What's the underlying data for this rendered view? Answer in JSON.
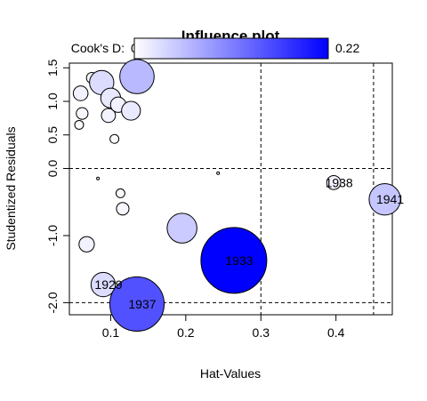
{
  "chart_data": {
    "type": "scatter",
    "title": "Influence plot",
    "xlabel": "Hat-Values",
    "ylabel": "Studentized Residuals",
    "xlim": [
      0.045,
      0.475
    ],
    "ylim": [
      -2.18,
      1.57
    ],
    "x_ticks": [
      {
        "value": 0.1,
        "label": "0.1"
      },
      {
        "value": 0.2,
        "label": "0.2"
      },
      {
        "value": 0.3,
        "label": "0.3"
      },
      {
        "value": 0.4,
        "label": "0.4"
      }
    ],
    "y_ticks": [
      {
        "value": -2.0,
        "label": "-2.0"
      },
      {
        "value": -1.0,
        "label": "-1.0"
      },
      {
        "value": 0.0,
        "label": "0.0"
      },
      {
        "value": 0.5,
        "label": "0.5"
      },
      {
        "value": 1.0,
        "label": "1.0"
      },
      {
        "value": 1.5,
        "label": "1.5"
      }
    ],
    "reference_lines": {
      "horizontal": [
        0,
        -2
      ],
      "vertical": [
        0.3,
        0.45
      ],
      "style": "dashed"
    },
    "legend": {
      "label": "Cook's D:",
      "min_label": "0",
      "max_label": "0.22",
      "min": 0,
      "max": 0.22,
      "color_low": "#ffffff",
      "color_high": "#0000ff",
      "placement": "top"
    },
    "points": [
      {
        "x": 0.058,
        "y": 0.65,
        "cooks_d": 0.004,
        "label": ""
      },
      {
        "x": 0.062,
        "y": 0.82,
        "cooks_d": 0.007,
        "label": ""
      },
      {
        "x": 0.06,
        "y": 1.12,
        "cooks_d": 0.011,
        "label": ""
      },
      {
        "x": 0.075,
        "y": 1.35,
        "cooks_d": 0.006,
        "label": ""
      },
      {
        "x": 0.088,
        "y": 1.28,
        "cooks_d": 0.03,
        "label": ""
      },
      {
        "x": 0.1,
        "y": 1.05,
        "cooks_d": 0.02,
        "label": ""
      },
      {
        "x": 0.097,
        "y": 0.79,
        "cooks_d": 0.01,
        "label": ""
      },
      {
        "x": 0.105,
        "y": 0.44,
        "cooks_d": 0.004,
        "label": ""
      },
      {
        "x": 0.11,
        "y": 0.95,
        "cooks_d": 0.012,
        "label": ""
      },
      {
        "x": 0.127,
        "y": 0.86,
        "cooks_d": 0.018,
        "label": ""
      },
      {
        "x": 0.135,
        "y": 1.37,
        "cooks_d": 0.06,
        "label": ""
      },
      {
        "x": 0.083,
        "y": -0.15,
        "cooks_d": 0.0,
        "label": ""
      },
      {
        "x": 0.243,
        "y": -0.07,
        "cooks_d": 0.0,
        "label": ""
      },
      {
        "x": 0.113,
        "y": -0.37,
        "cooks_d": 0.004,
        "label": ""
      },
      {
        "x": 0.116,
        "y": -0.6,
        "cooks_d": 0.008,
        "label": ""
      },
      {
        "x": 0.068,
        "y": -1.13,
        "cooks_d": 0.012,
        "label": ""
      },
      {
        "x": 0.195,
        "y": -0.89,
        "cooks_d": 0.045,
        "label": ""
      },
      {
        "x": 0.09,
        "y": -1.73,
        "cooks_d": 0.03,
        "label": "1929"
      },
      {
        "x": 0.264,
        "y": -1.37,
        "cooks_d": 0.22,
        "label": "1933"
      },
      {
        "x": 0.135,
        "y": -2.02,
        "cooks_d": 0.15,
        "label": "1937"
      },
      {
        "x": 0.397,
        "y": -0.21,
        "cooks_d": 0.01,
        "label": "1938"
      },
      {
        "x": 0.465,
        "y": -0.46,
        "cooks_d": 0.05,
        "label": "1941"
      }
    ]
  }
}
